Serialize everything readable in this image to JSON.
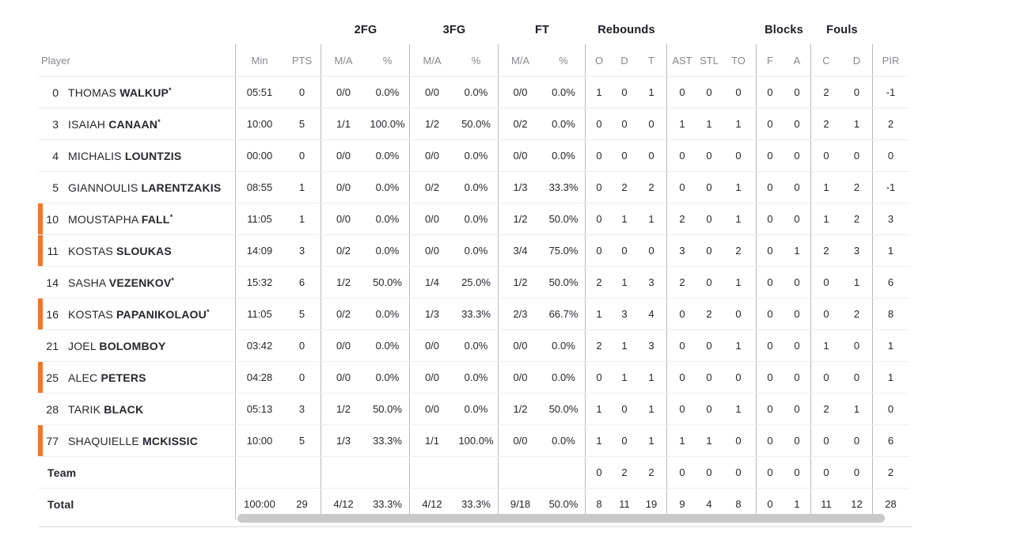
{
  "header": {
    "groups": {
      "fg2": "2FG",
      "fg3": "3FG",
      "ft": "FT",
      "rebounds": "Rebounds",
      "blocks": "Blocks",
      "fouls": "Fouls"
    },
    "cols": {
      "player": "Player",
      "min": "Min",
      "pts": "PTS",
      "ma": "M/A",
      "pct": "%",
      "o": "O",
      "d": "D",
      "t": "T",
      "ast": "AST",
      "stl": "STL",
      "to": "TO",
      "f": "F",
      "a": "A",
      "c": "C",
      "pir": "PIR"
    }
  },
  "rows": [
    {
      "type": "player",
      "num": "0",
      "first": "THOMAS",
      "last": "WALKUP",
      "starter": true,
      "on_court": false,
      "min": "05:51",
      "pts": "0",
      "fg2_ma": "0/0",
      "fg2_pct": "0.0%",
      "fg3_ma": "0/0",
      "fg3_pct": "0.0%",
      "ft_ma": "0/0",
      "ft_pct": "0.0%",
      "reb_o": "1",
      "reb_d": "0",
      "reb_t": "1",
      "ast": "0",
      "stl": "0",
      "to": "0",
      "blk_f": "0",
      "blk_a": "0",
      "foul_c": "2",
      "foul_d": "0",
      "pir": "-1"
    },
    {
      "type": "player",
      "num": "3",
      "first": "ISAIAH",
      "last": "CANAAN",
      "starter": true,
      "on_court": false,
      "min": "10:00",
      "pts": "5",
      "fg2_ma": "1/1",
      "fg2_pct": "100.0%",
      "fg3_ma": "1/2",
      "fg3_pct": "50.0%",
      "ft_ma": "0/2",
      "ft_pct": "0.0%",
      "reb_o": "0",
      "reb_d": "0",
      "reb_t": "0",
      "ast": "1",
      "stl": "1",
      "to": "1",
      "blk_f": "0",
      "blk_a": "0",
      "foul_c": "2",
      "foul_d": "1",
      "pir": "2"
    },
    {
      "type": "player",
      "num": "4",
      "first": "MICHALIS",
      "last": "LOUNTZIS",
      "starter": false,
      "on_court": false,
      "min": "00:00",
      "pts": "0",
      "fg2_ma": "0/0",
      "fg2_pct": "0.0%",
      "fg3_ma": "0/0",
      "fg3_pct": "0.0%",
      "ft_ma": "0/0",
      "ft_pct": "0.0%",
      "reb_o": "0",
      "reb_d": "0",
      "reb_t": "0",
      "ast": "0",
      "stl": "0",
      "to": "0",
      "blk_f": "0",
      "blk_a": "0",
      "foul_c": "0",
      "foul_d": "0",
      "pir": "0"
    },
    {
      "type": "player",
      "num": "5",
      "first": "GIANNOULIS",
      "last": "LARENTZAKIS",
      "starter": false,
      "on_court": false,
      "min": "08:55",
      "pts": "1",
      "fg2_ma": "0/0",
      "fg2_pct": "0.0%",
      "fg3_ma": "0/2",
      "fg3_pct": "0.0%",
      "ft_ma": "1/3",
      "ft_pct": "33.3%",
      "reb_o": "0",
      "reb_d": "2",
      "reb_t": "2",
      "ast": "0",
      "stl": "0",
      "to": "1",
      "blk_f": "0",
      "blk_a": "0",
      "foul_c": "1",
      "foul_d": "2",
      "pir": "-1"
    },
    {
      "type": "player",
      "num": "10",
      "first": "MOUSTAPHA",
      "last": "FALL",
      "starter": true,
      "on_court": true,
      "min": "11:05",
      "pts": "1",
      "fg2_ma": "0/0",
      "fg2_pct": "0.0%",
      "fg3_ma": "0/0",
      "fg3_pct": "0.0%",
      "ft_ma": "1/2",
      "ft_pct": "50.0%",
      "reb_o": "0",
      "reb_d": "1",
      "reb_t": "1",
      "ast": "2",
      "stl": "0",
      "to": "1",
      "blk_f": "0",
      "blk_a": "0",
      "foul_c": "1",
      "foul_d": "2",
      "pir": "3"
    },
    {
      "type": "player",
      "num": "11",
      "first": "KOSTAS",
      "last": "SLOUKAS",
      "starter": false,
      "on_court": true,
      "min": "14:09",
      "pts": "3",
      "fg2_ma": "0/2",
      "fg2_pct": "0.0%",
      "fg3_ma": "0/0",
      "fg3_pct": "0.0%",
      "ft_ma": "3/4",
      "ft_pct": "75.0%",
      "reb_o": "0",
      "reb_d": "0",
      "reb_t": "0",
      "ast": "3",
      "stl": "0",
      "to": "2",
      "blk_f": "0",
      "blk_a": "1",
      "foul_c": "2",
      "foul_d": "3",
      "pir": "1"
    },
    {
      "type": "player",
      "num": "14",
      "first": "SASHA",
      "last": "VEZENKOV",
      "starter": true,
      "on_court": false,
      "min": "15:32",
      "pts": "6",
      "fg2_ma": "1/2",
      "fg2_pct": "50.0%",
      "fg3_ma": "1/4",
      "fg3_pct": "25.0%",
      "ft_ma": "1/2",
      "ft_pct": "50.0%",
      "reb_o": "2",
      "reb_d": "1",
      "reb_t": "3",
      "ast": "2",
      "stl": "0",
      "to": "1",
      "blk_f": "0",
      "blk_a": "0",
      "foul_c": "0",
      "foul_d": "1",
      "pir": "6"
    },
    {
      "type": "player",
      "num": "16",
      "first": "KOSTAS",
      "last": "PAPANIKOLAOU",
      "starter": true,
      "on_court": true,
      "min": "11:05",
      "pts": "5",
      "fg2_ma": "0/2",
      "fg2_pct": "0.0%",
      "fg3_ma": "1/3",
      "fg3_pct": "33.3%",
      "ft_ma": "2/3",
      "ft_pct": "66.7%",
      "reb_o": "1",
      "reb_d": "3",
      "reb_t": "4",
      "ast": "0",
      "stl": "2",
      "to": "0",
      "blk_f": "0",
      "blk_a": "0",
      "foul_c": "0",
      "foul_d": "2",
      "pir": "8"
    },
    {
      "type": "player",
      "num": "21",
      "first": "JOEL",
      "last": "BOLOMBOY",
      "starter": false,
      "on_court": false,
      "min": "03:42",
      "pts": "0",
      "fg2_ma": "0/0",
      "fg2_pct": "0.0%",
      "fg3_ma": "0/0",
      "fg3_pct": "0.0%",
      "ft_ma": "0/0",
      "ft_pct": "0.0%",
      "reb_o": "2",
      "reb_d": "1",
      "reb_t": "3",
      "ast": "0",
      "stl": "0",
      "to": "1",
      "blk_f": "0",
      "blk_a": "0",
      "foul_c": "1",
      "foul_d": "0",
      "pir": "1"
    },
    {
      "type": "player",
      "num": "25",
      "first": "ALEC",
      "last": "PETERS",
      "starter": false,
      "on_court": true,
      "min": "04:28",
      "pts": "0",
      "fg2_ma": "0/0",
      "fg2_pct": "0.0%",
      "fg3_ma": "0/0",
      "fg3_pct": "0.0%",
      "ft_ma": "0/0",
      "ft_pct": "0.0%",
      "reb_o": "0",
      "reb_d": "1",
      "reb_t": "1",
      "ast": "0",
      "stl": "0",
      "to": "0",
      "blk_f": "0",
      "blk_a": "0",
      "foul_c": "0",
      "foul_d": "0",
      "pir": "1"
    },
    {
      "type": "player",
      "num": "28",
      "first": "TARIK",
      "last": "BLACK",
      "starter": false,
      "on_court": false,
      "min": "05:13",
      "pts": "3",
      "fg2_ma": "1/2",
      "fg2_pct": "50.0%",
      "fg3_ma": "0/0",
      "fg3_pct": "0.0%",
      "ft_ma": "1/2",
      "ft_pct": "50.0%",
      "reb_o": "1",
      "reb_d": "0",
      "reb_t": "1",
      "ast": "0",
      "stl": "0",
      "to": "1",
      "blk_f": "0",
      "blk_a": "0",
      "foul_c": "2",
      "foul_d": "1",
      "pir": "0"
    },
    {
      "type": "player",
      "num": "77",
      "first": "SHAQUIELLE",
      "last": "MCKISSIC",
      "starter": false,
      "on_court": true,
      "min": "10:00",
      "pts": "5",
      "fg2_ma": "1/3",
      "fg2_pct": "33.3%",
      "fg3_ma": "1/1",
      "fg3_pct": "100.0%",
      "ft_ma": "0/0",
      "ft_pct": "0.0%",
      "reb_o": "1",
      "reb_d": "0",
      "reb_t": "1",
      "ast": "1",
      "stl": "1",
      "to": "0",
      "blk_f": "0",
      "blk_a": "0",
      "foul_c": "0",
      "foul_d": "0",
      "pir": "6"
    },
    {
      "type": "team",
      "label": "Team",
      "min": "",
      "pts": "",
      "fg2_ma": "",
      "fg2_pct": "",
      "fg3_ma": "",
      "fg3_pct": "",
      "ft_ma": "",
      "ft_pct": "",
      "reb_o": "0",
      "reb_d": "2",
      "reb_t": "2",
      "ast": "0",
      "stl": "0",
      "to": "0",
      "blk_f": "0",
      "blk_a": "0",
      "foul_c": "0",
      "foul_d": "0",
      "pir": "2"
    },
    {
      "type": "total",
      "label": "Total",
      "min": "100:00",
      "pts": "29",
      "fg2_ma": "4/12",
      "fg2_pct": "33.3%",
      "fg3_ma": "4/12",
      "fg3_pct": "33.3%",
      "ft_ma": "9/18",
      "ft_pct": "50.0%",
      "reb_o": "8",
      "reb_d": "11",
      "reb_t": "19",
      "ast": "9",
      "stl": "4",
      "to": "8",
      "blk_f": "0",
      "blk_a": "1",
      "foul_c": "11",
      "foul_d": "12",
      "pir": "28"
    }
  ],
  "colors": {
    "accent": "#F2752B",
    "scrollbar": "#C9C9C9"
  }
}
